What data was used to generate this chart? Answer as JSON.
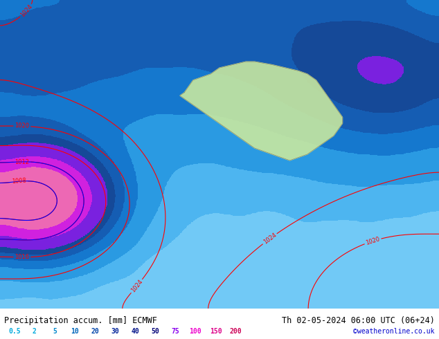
{
  "title_left": "Precipitation accum. [mm] ECMWF",
  "title_right": "Th 02-05-2024 06:00 UTC (06+24)",
  "credit": "©weatheronline.co.uk",
  "legend_values": [
    0.5,
    2,
    5,
    10,
    20,
    30,
    40,
    50,
    75,
    100,
    150,
    200
  ],
  "legend_colors": [
    "#c8f0ff",
    "#a0d8ff",
    "#78c0f0",
    "#50a8e8",
    "#2890e0",
    "#0070d0",
    "#0050b0",
    "#003890",
    "#8b00ff",
    "#ff00ff",
    "#ff69b4",
    "#ff1493"
  ],
  "bg_color": "#87ceeb",
  "map_bg": "#b0e0ff",
  "fig_width": 6.34,
  "fig_height": 4.9,
  "dpi": 100,
  "bottom_bar_color": "#ffffff",
  "label_color_left": "#000000",
  "label_color_right": "#000000",
  "credit_color": "#0000cc"
}
